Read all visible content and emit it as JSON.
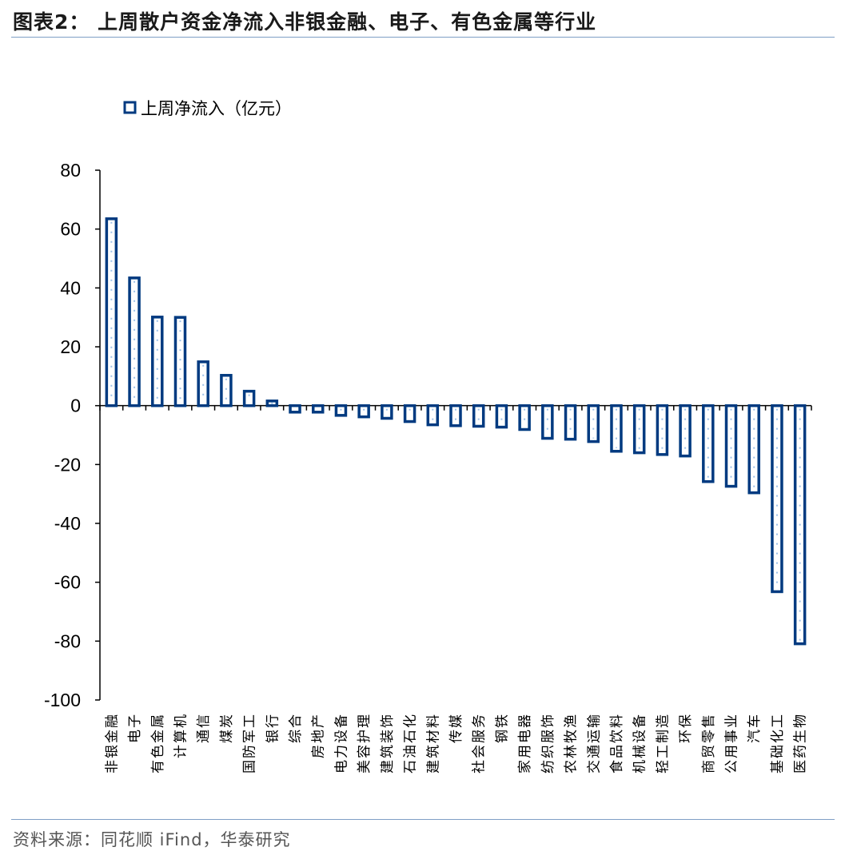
{
  "header": {
    "title": "图表2： 上周散户资金净流入非银金融、电子、有色金属等行业"
  },
  "footer": {
    "source": "资料来源：同花顺 iFind，华泰研究"
  },
  "chart_data": {
    "type": "bar",
    "legend": {
      "label": "上周净流入（亿元）",
      "position": "top-left"
    },
    "ylim": [
      -100,
      80
    ],
    "yticks": [
      80,
      60,
      40,
      20,
      0,
      -20,
      -40,
      -60,
      -80,
      -100
    ],
    "grid": false,
    "bar_color": "#003a80",
    "categories": [
      "非银金融",
      "电子",
      "有色金属",
      "计算机",
      "通信",
      "煤炭",
      "国防军工",
      "银行",
      "综合",
      "房地产",
      "电力设备",
      "美容护理",
      "建筑装饰",
      "石油石化",
      "建筑材料",
      "传媒",
      "社会服务",
      "钢铁",
      "家用电器",
      "纺织服饰",
      "农林牧渔",
      "交通运输",
      "食品饮料",
      "机械设备",
      "轻工制造",
      "环保",
      "商贸零售",
      "公用事业",
      "汽车",
      "基础化工",
      "医药生物"
    ],
    "values": [
      63.5,
      43.4,
      30.1,
      30.0,
      14.9,
      10.3,
      4.9,
      1.6,
      -2.2,
      -2.2,
      -3.3,
      -3.8,
      -4.3,
      -5.4,
      -6.5,
      -6.8,
      -7.0,
      -7.3,
      -8.1,
      -11.1,
      -11.4,
      -12.2,
      -15.5,
      -16.0,
      -16.6,
      -17.1,
      -25.8,
      -27.4,
      -29.6,
      -63.2,
      -80.9
    ]
  }
}
